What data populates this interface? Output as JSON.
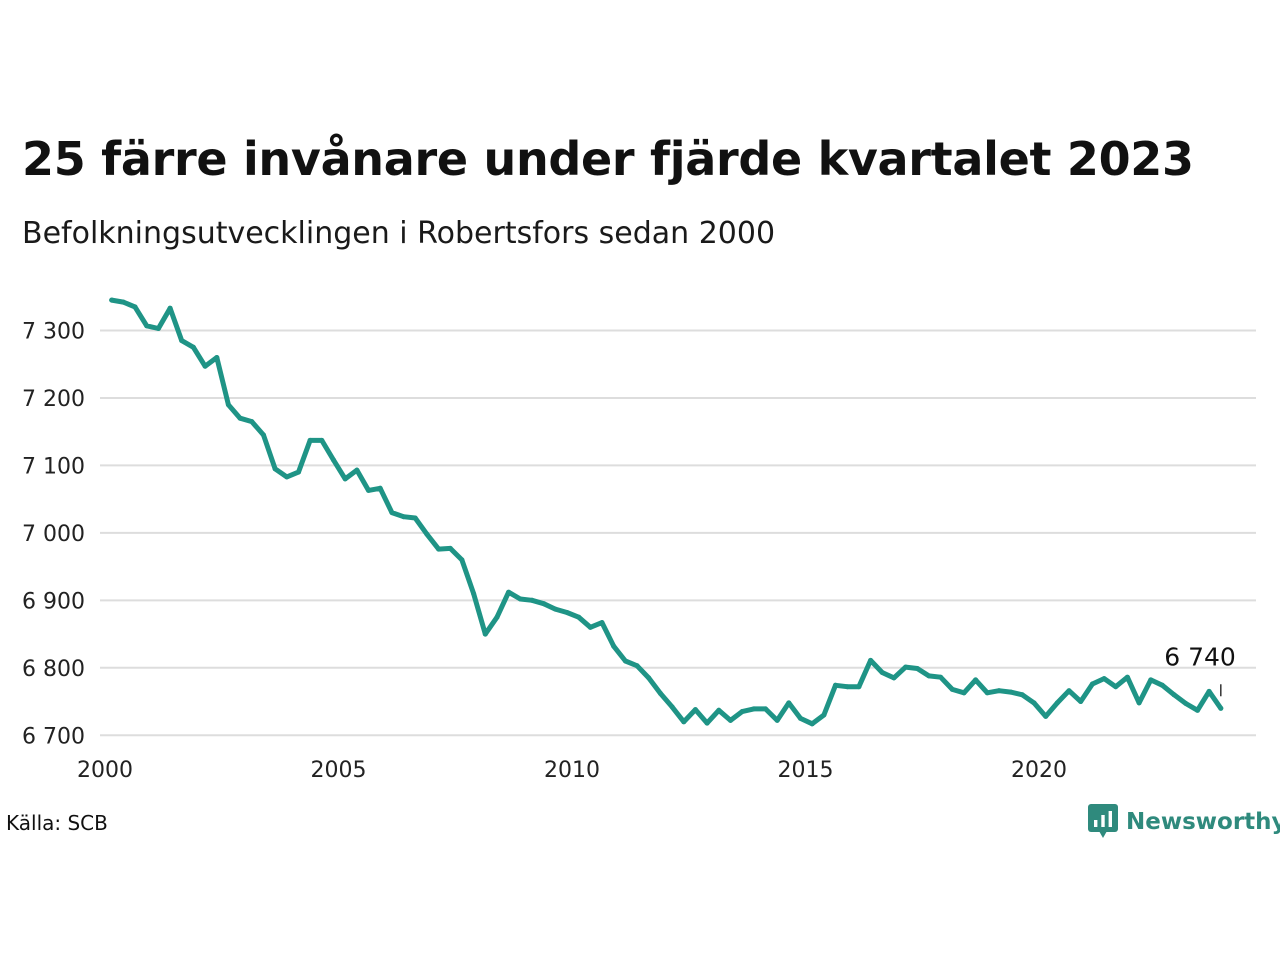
{
  "title": "25 färre invånare under fjärde kvartalet 2023",
  "subtitle": "Befolkningsutvecklingen i Robertsfors sedan 2000",
  "source": "Källa: SCB",
  "brand": {
    "name": "Newsworthy",
    "icon": "newsworthy-logo-icon",
    "color": "#2f8a7d"
  },
  "colors": {
    "line": "#1f9486",
    "grid": "#dddddd"
  },
  "chart_data": {
    "type": "line",
    "xlim": [
      2000,
      2024.6
    ],
    "ylim": [
      6690,
      7360
    ],
    "x_ticks": [
      {
        "value": 2000,
        "label": "2000"
      },
      {
        "value": 2005,
        "label": "2005"
      },
      {
        "value": 2010,
        "label": "2010"
      },
      {
        "value": 2015,
        "label": "2015"
      },
      {
        "value": 2020,
        "label": "2020"
      }
    ],
    "y_ticks": [
      {
        "value": 6700,
        "label": "6 700"
      },
      {
        "value": 6800,
        "label": "6 800"
      },
      {
        "value": 6900,
        "label": "6 900"
      },
      {
        "value": 7000,
        "label": "7 000"
      },
      {
        "value": 7100,
        "label": "7 100"
      },
      {
        "value": 7200,
        "label": "7 200"
      },
      {
        "value": 7300,
        "label": "7 300"
      }
    ],
    "grid": true,
    "legend": "none",
    "end_label": "6 740",
    "series": [
      {
        "start_year": 2000.25,
        "step_years": 0.25,
        "values": [
          7345,
          7342,
          7335,
          7307,
          7303,
          7333,
          7285,
          7275,
          7247,
          7260,
          7190,
          7170,
          7165,
          7145,
          7095,
          7083,
          7090,
          7137,
          7137,
          7108,
          7080,
          7093,
          7063,
          7066,
          7030,
          7024,
          7022,
          6998,
          6976,
          6977,
          6960,
          6910,
          6850,
          6875,
          6912,
          6902,
          6900,
          6895,
          6887,
          6882,
          6875,
          6860,
          6867,
          6832,
          6810,
          6803,
          6785,
          6762,
          6742,
          6720,
          6738,
          6718,
          6737,
          6722,
          6735,
          6739,
          6739,
          6722,
          6748,
          6725,
          6717,
          6730,
          6774,
          6772,
          6772,
          6811,
          6793,
          6785,
          6801,
          6799,
          6788,
          6786,
          6768,
          6763,
          6782,
          6763,
          6766,
          6764,
          6760,
          6748,
          6728,
          6748,
          6766,
          6750,
          6776,
          6784,
          6772,
          6786,
          6748,
          6782,
          6774,
          6760,
          6747,
          6737,
          6765,
          6740
        ]
      }
    ]
  }
}
